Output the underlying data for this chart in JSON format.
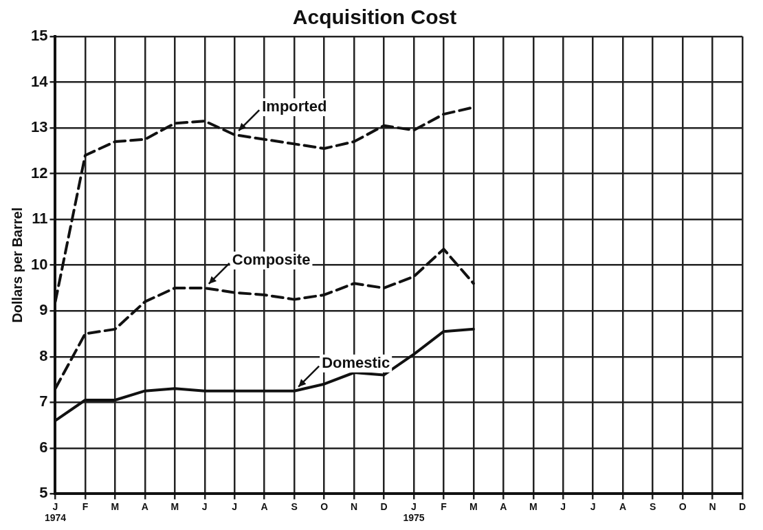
{
  "chart_data": {
    "type": "line",
    "title": "Acquisition Cost",
    "ylabel": "Dollars per Barrel",
    "categories": [
      "J\n1974",
      "F",
      "M",
      "A",
      "M",
      "J",
      "J",
      "A",
      "S",
      "O",
      "N",
      "D",
      "J\n1975",
      "F",
      "M",
      "A",
      "M",
      "J",
      "J",
      "A",
      "S",
      "O",
      "N",
      "D"
    ],
    "series": [
      {
        "name": "Imported",
        "color": "#111111",
        "line_style": "dashed",
        "values": [
          9.2,
          12.4,
          12.7,
          12.75,
          13.1,
          13.15,
          12.85,
          12.75,
          12.65,
          12.55,
          12.7,
          13.05,
          12.95,
          13.3,
          13.45,
          null,
          null,
          null,
          null,
          null,
          null,
          null,
          null,
          null
        ]
      },
      {
        "name": "Composite",
        "color": "#111111",
        "line_style": "dashed",
        "values": [
          7.3,
          8.5,
          8.6,
          9.2,
          9.5,
          9.5,
          9.4,
          9.35,
          9.25,
          9.35,
          9.6,
          9.5,
          9.75,
          10.35,
          9.6,
          null,
          null,
          null,
          null,
          null,
          null,
          null,
          null,
          null
        ]
      },
      {
        "name": "Domestic",
        "color": "#111111",
        "line_style": "solid",
        "values": [
          6.6,
          7.05,
          7.05,
          7.25,
          7.3,
          7.25,
          7.25,
          7.25,
          7.25,
          7.4,
          7.65,
          7.6,
          8.05,
          8.55,
          8.6,
          null,
          null,
          null,
          null,
          null,
          null,
          null,
          null,
          null
        ]
      }
    ],
    "ylim": [
      5,
      15
    ],
    "yticks": [
      5,
      6,
      7,
      8,
      9,
      10,
      11,
      12,
      13,
      14,
      15
    ],
    "grid": true,
    "legend": false,
    "marker": "none"
  }
}
